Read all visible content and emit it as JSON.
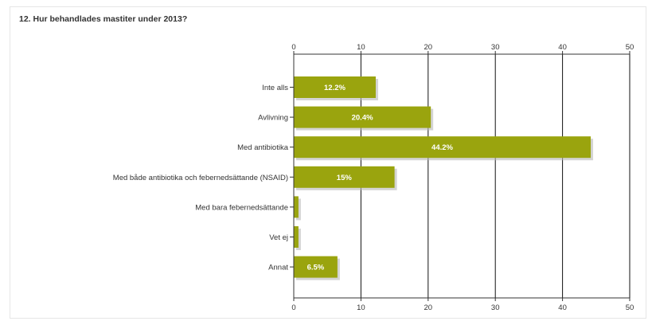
{
  "chart_data": {
    "type": "bar",
    "orientation": "horizontal",
    "title": "12. Hur behandlades mastiter under 2013?",
    "categories": [
      "Inte alls",
      "Avlivning",
      "Med antibiotika",
      "Med både antibiotika och febernedsättande (NSAID)",
      "Med bara febernedsättande",
      "Vet ej",
      "Annat"
    ],
    "values": [
      12.2,
      20.4,
      44.2,
      15,
      0.7,
      0.7,
      6.5
    ],
    "data_labels": [
      "12.2%",
      "20.4%",
      "44.2%",
      "15%",
      "",
      "",
      "6.5%"
    ],
    "xlim": [
      0,
      50
    ],
    "xticks": [
      0,
      10,
      20,
      30,
      40,
      50
    ],
    "xticks_top_and_bottom": true,
    "grid": true,
    "colors": {
      "bar": "#9aa40e",
      "bar_shadow": "#b8b8b8",
      "grid": "#111111",
      "plot_bg": "#ffffff"
    }
  }
}
